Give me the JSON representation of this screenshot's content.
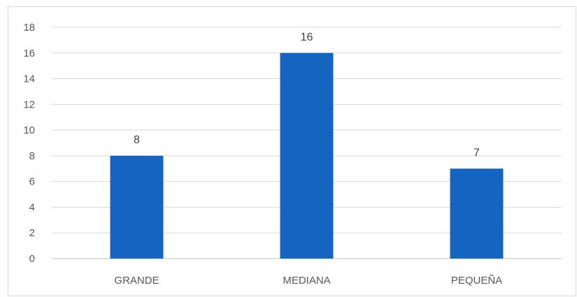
{
  "chart_data": {
    "type": "bar",
    "title": "",
    "xlabel": "",
    "ylabel": "",
    "categories": [
      "GRANDE",
      "MEDIANA",
      "PEQUEÑA"
    ],
    "values": [
      8,
      16,
      7
    ],
    "ylim": [
      0,
      18
    ],
    "yticks": [
      0,
      2,
      4,
      6,
      8,
      10,
      12,
      14,
      16,
      18
    ],
    "data_labels": true,
    "grid": true,
    "legend": false,
    "bar_color": "#1565C0",
    "grid_color": "#d9d9d9",
    "axis_color": "#bfbfbf"
  }
}
